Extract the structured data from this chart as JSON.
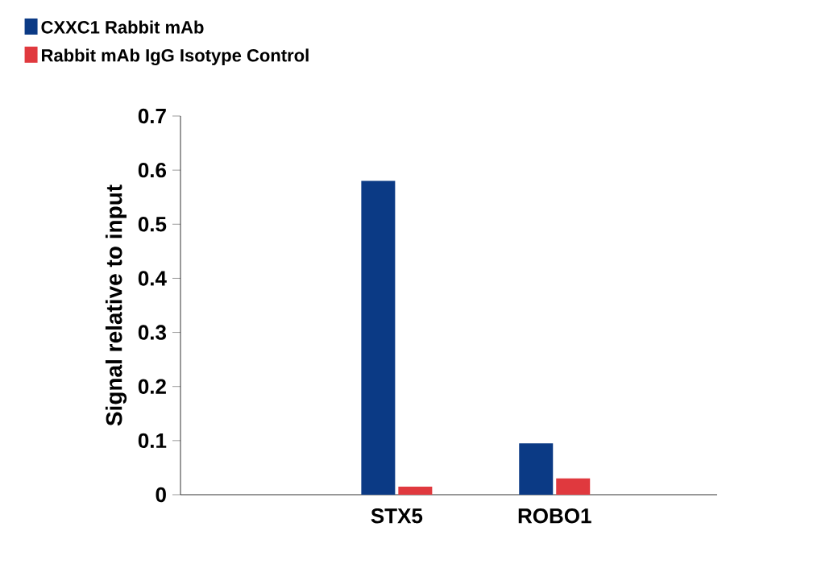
{
  "chart_data": {
    "type": "bar",
    "ylabel": "Signal relative to input",
    "categories": [
      "STX5",
      "ROBO1"
    ],
    "series": [
      {
        "name": "CXXC1 Rabbit mAb",
        "color": "#0b3a85",
        "values": [
          0.58,
          0.095
        ]
      },
      {
        "name": "Rabbit mAb IgG Isotype Control",
        "color": "#e0393e",
        "values": [
          0.015,
          0.03
        ]
      }
    ],
    "ylim": [
      0,
      0.7
    ],
    "yticks": [
      0,
      0.1,
      0.2,
      0.3,
      0.4,
      0.5,
      0.6,
      0.7
    ],
    "legend": "top left",
    "grid": false
  }
}
